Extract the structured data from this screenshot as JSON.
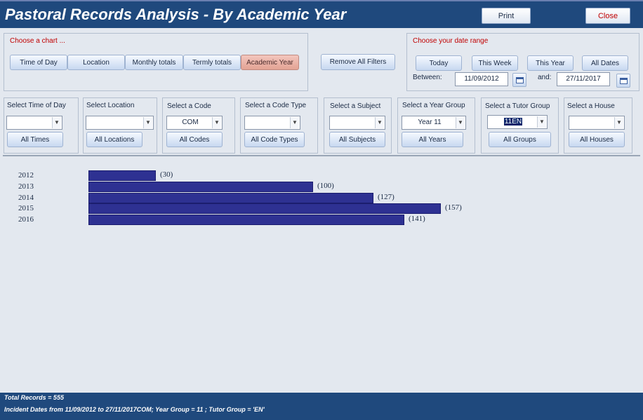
{
  "header": {
    "title": "Pastoral Records Analysis - By Academic Year",
    "print_label": "Print",
    "close_label": "Close"
  },
  "chart_chooser": {
    "title": "Choose a chart ...",
    "buttons": [
      "Time of Day",
      "Location",
      "Monthly totals",
      "Termly totals",
      "Academic Year"
    ],
    "active": "Academic Year"
  },
  "remove_filters_label": "Remove All Filters",
  "date_range": {
    "title": "Choose your date range",
    "buttons": [
      "Today",
      "This Week",
      "This Year",
      "All Dates"
    ],
    "between_label": "Between:",
    "and_label": "and:",
    "from": "11/09/2012",
    "to": "27/11/2017"
  },
  "filters": [
    {
      "label": "Select Time of Day",
      "value": "",
      "button": "All Times"
    },
    {
      "label": "Select Location",
      "value": "",
      "button": "All Locations"
    },
    {
      "label": "Select a Code",
      "value": "COM",
      "button": "All Codes"
    },
    {
      "label": "Select a Code Type",
      "value": "",
      "button": "All Code Types"
    },
    {
      "label": "Select a Subject",
      "value": "",
      "button": "All Subjects"
    },
    {
      "label": "Select a Year Group",
      "value": "Year 11",
      "button": "All Years"
    },
    {
      "label": "Select a Tutor Group",
      "value": "11EN",
      "button": "All Groups"
    },
    {
      "label": "Select a House",
      "value": "",
      "button": "All Houses"
    }
  ],
  "chart_data": {
    "type": "bar",
    "orientation": "horizontal",
    "categories": [
      "2012",
      "2013",
      "2014",
      "2015",
      "2016"
    ],
    "values": [
      30,
      100,
      127,
      157,
      141
    ],
    "value_labels": [
      "(30)",
      "(100)",
      "(127)",
      "(157)",
      "(141)"
    ],
    "title": "",
    "xlabel": "",
    "ylabel": "",
    "bar_color": "#2e3192"
  },
  "footer": {
    "total": "Total Records = 555",
    "criteria": "Incident Dates from 11/09/2012 to 27/11/2017COM; Year Group = 11 ; Tutor Group = 'EN'"
  },
  "colors": {
    "header_bg": "#1f497d",
    "accent_red": "#c00000",
    "active_button": "#e3a394"
  }
}
